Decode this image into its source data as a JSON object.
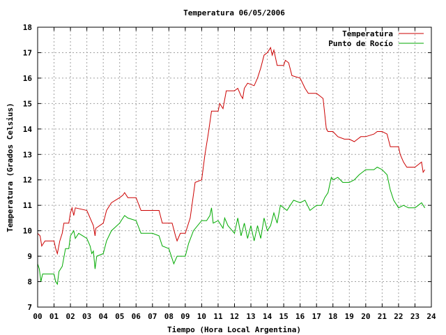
{
  "chart_data": {
    "type": "line",
    "title": "Temperatura 06/05/2006",
    "xlabel": "Tiempo (Hora Local Argentina)",
    "ylabel": "Temperatura (Grados Celsius)",
    "xlim": [
      0,
      24
    ],
    "ylim": [
      7,
      18
    ],
    "grid": true,
    "legend_position": "top-right",
    "x_ticks": [
      "00",
      "01",
      "02",
      "03",
      "04",
      "05",
      "06",
      "07",
      "08",
      "09",
      "10",
      "11",
      "12",
      "13",
      "14",
      "15",
      "16",
      "17",
      "18",
      "19",
      "20",
      "21",
      "22",
      "23",
      "24"
    ],
    "y_ticks": [
      "7",
      "8",
      "9",
      "10",
      "11",
      "12",
      "13",
      "14",
      "15",
      "16",
      "17",
      "18"
    ],
    "series": [
      {
        "name": "Temperatura",
        "color": "#cc0000",
        "points": [
          [
            0.0,
            9.9
          ],
          [
            0.15,
            9.8
          ],
          [
            0.25,
            9.4
          ],
          [
            0.35,
            9.5
          ],
          [
            0.45,
            9.6
          ],
          [
            1.0,
            9.6
          ],
          [
            1.1,
            9.3
          ],
          [
            1.2,
            9.1
          ],
          [
            1.35,
            9.6
          ],
          [
            1.5,
            9.9
          ],
          [
            1.6,
            10.3
          ],
          [
            1.9,
            10.3
          ],
          [
            2.0,
            10.7
          ],
          [
            2.1,
            10.9
          ],
          [
            2.2,
            10.6
          ],
          [
            2.3,
            10.9
          ],
          [
            3.0,
            10.8
          ],
          [
            3.2,
            10.5
          ],
          [
            3.4,
            10.2
          ],
          [
            3.5,
            9.8
          ],
          [
            3.55,
            10.1
          ],
          [
            4.0,
            10.3
          ],
          [
            4.2,
            10.8
          ],
          [
            4.5,
            11.1
          ],
          [
            5.0,
            11.3
          ],
          [
            5.2,
            11.4
          ],
          [
            5.3,
            11.5
          ],
          [
            5.5,
            11.3
          ],
          [
            6.0,
            11.3
          ],
          [
            6.3,
            10.8
          ],
          [
            7.0,
            10.8
          ],
          [
            7.4,
            10.8
          ],
          [
            7.6,
            10.3
          ],
          [
            8.2,
            10.3
          ],
          [
            8.4,
            9.8
          ],
          [
            8.5,
            9.6
          ],
          [
            8.7,
            9.9
          ],
          [
            9.0,
            9.9
          ],
          [
            9.3,
            10.5
          ],
          [
            9.6,
            11.9
          ],
          [
            10.0,
            12.0
          ],
          [
            10.2,
            13.0
          ],
          [
            10.4,
            13.8
          ],
          [
            10.6,
            14.7
          ],
          [
            11.0,
            14.7
          ],
          [
            11.1,
            15.0
          ],
          [
            11.3,
            14.8
          ],
          [
            11.5,
            15.5
          ],
          [
            12.0,
            15.5
          ],
          [
            12.2,
            15.6
          ],
          [
            12.4,
            15.3
          ],
          [
            12.5,
            15.2
          ],
          [
            12.6,
            15.6
          ],
          [
            12.8,
            15.8
          ],
          [
            13.2,
            15.7
          ],
          [
            13.4,
            16.0
          ],
          [
            13.6,
            16.4
          ],
          [
            13.8,
            16.9
          ],
          [
            14.0,
            17.0
          ],
          [
            14.2,
            17.2
          ],
          [
            14.3,
            16.9
          ],
          [
            14.4,
            17.1
          ],
          [
            14.6,
            16.5
          ],
          [
            15.0,
            16.5
          ],
          [
            15.1,
            16.7
          ],
          [
            15.3,
            16.6
          ],
          [
            15.5,
            16.1
          ],
          [
            16.0,
            16.0
          ],
          [
            16.3,
            15.6
          ],
          [
            16.5,
            15.4
          ],
          [
            17.0,
            15.4
          ],
          [
            17.2,
            15.3
          ],
          [
            17.4,
            15.2
          ],
          [
            17.6,
            14.0
          ],
          [
            17.7,
            13.9
          ],
          [
            18.0,
            13.9
          ],
          [
            18.3,
            13.7
          ],
          [
            18.7,
            13.6
          ],
          [
            19.0,
            13.6
          ],
          [
            19.3,
            13.5
          ],
          [
            19.5,
            13.6
          ],
          [
            19.7,
            13.7
          ],
          [
            20.0,
            13.7
          ],
          [
            20.5,
            13.8
          ],
          [
            20.7,
            13.9
          ],
          [
            21.0,
            13.9
          ],
          [
            21.3,
            13.8
          ],
          [
            21.5,
            13.3
          ],
          [
            22.0,
            13.3
          ],
          [
            22.1,
            13.0
          ],
          [
            22.3,
            12.7
          ],
          [
            22.5,
            12.5
          ],
          [
            23.0,
            12.5
          ],
          [
            23.2,
            12.6
          ],
          [
            23.4,
            12.7
          ],
          [
            23.5,
            12.3
          ],
          [
            23.6,
            12.4
          ]
        ]
      },
      {
        "name": "Punto de Rocío",
        "color": "#00aa00",
        "points": [
          [
            0.0,
            8.7
          ],
          [
            0.1,
            8.5
          ],
          [
            0.2,
            8.0
          ],
          [
            0.3,
            8.3
          ],
          [
            0.5,
            8.3
          ],
          [
            1.0,
            8.3
          ],
          [
            1.1,
            8.0
          ],
          [
            1.2,
            7.9
          ],
          [
            1.3,
            8.4
          ],
          [
            1.5,
            8.6
          ],
          [
            1.7,
            9.3
          ],
          [
            1.9,
            9.3
          ],
          [
            2.0,
            9.8
          ],
          [
            2.2,
            10.0
          ],
          [
            2.3,
            9.7
          ],
          [
            2.5,
            9.9
          ],
          [
            3.0,
            9.7
          ],
          [
            3.2,
            9.4
          ],
          [
            3.3,
            9.1
          ],
          [
            3.4,
            9.2
          ],
          [
            3.5,
            8.5
          ],
          [
            3.6,
            9.0
          ],
          [
            4.0,
            9.1
          ],
          [
            4.2,
            9.6
          ],
          [
            4.5,
            10.0
          ],
          [
            5.0,
            10.3
          ],
          [
            5.2,
            10.5
          ],
          [
            5.3,
            10.6
          ],
          [
            5.5,
            10.5
          ],
          [
            6.0,
            10.4
          ],
          [
            6.3,
            9.9
          ],
          [
            7.0,
            9.9
          ],
          [
            7.4,
            9.8
          ],
          [
            7.6,
            9.4
          ],
          [
            8.0,
            9.3
          ],
          [
            8.2,
            8.9
          ],
          [
            8.3,
            8.7
          ],
          [
            8.5,
            9.0
          ],
          [
            9.0,
            9.0
          ],
          [
            9.2,
            9.5
          ],
          [
            9.5,
            10.0
          ],
          [
            10.0,
            10.4
          ],
          [
            10.3,
            10.4
          ],
          [
            10.5,
            10.6
          ],
          [
            10.6,
            10.9
          ],
          [
            10.7,
            10.3
          ],
          [
            11.0,
            10.4
          ],
          [
            11.3,
            10.1
          ],
          [
            11.4,
            10.5
          ],
          [
            11.6,
            10.2
          ],
          [
            12.0,
            9.9
          ],
          [
            12.2,
            10.5
          ],
          [
            12.4,
            9.8
          ],
          [
            12.6,
            10.3
          ],
          [
            12.8,
            9.7
          ],
          [
            13.0,
            10.2
          ],
          [
            13.2,
            9.6
          ],
          [
            13.4,
            10.2
          ],
          [
            13.6,
            9.7
          ],
          [
            13.8,
            10.5
          ],
          [
            14.0,
            10.0
          ],
          [
            14.2,
            10.2
          ],
          [
            14.4,
            10.7
          ],
          [
            14.6,
            10.3
          ],
          [
            14.8,
            11.0
          ],
          [
            15.0,
            10.9
          ],
          [
            15.2,
            10.8
          ],
          [
            15.4,
            11.0
          ],
          [
            15.6,
            11.2
          ],
          [
            16.0,
            11.1
          ],
          [
            16.3,
            11.2
          ],
          [
            16.6,
            10.8
          ],
          [
            17.0,
            11.0
          ],
          [
            17.3,
            11.0
          ],
          [
            17.5,
            11.3
          ],
          [
            17.7,
            11.5
          ],
          [
            17.9,
            12.1
          ],
          [
            18.0,
            12.0
          ],
          [
            18.3,
            12.1
          ],
          [
            18.6,
            11.9
          ],
          [
            19.0,
            11.9
          ],
          [
            19.3,
            12.0
          ],
          [
            19.6,
            12.2
          ],
          [
            20.0,
            12.4
          ],
          [
            20.5,
            12.4
          ],
          [
            20.7,
            12.5
          ],
          [
            21.0,
            12.4
          ],
          [
            21.3,
            12.2
          ],
          [
            21.5,
            11.6
          ],
          [
            21.7,
            11.2
          ],
          [
            22.0,
            10.9
          ],
          [
            22.3,
            11.0
          ],
          [
            22.6,
            10.9
          ],
          [
            23.0,
            10.9
          ],
          [
            23.2,
            11.0
          ],
          [
            23.4,
            11.1
          ],
          [
            23.6,
            10.9
          ]
        ]
      }
    ]
  }
}
